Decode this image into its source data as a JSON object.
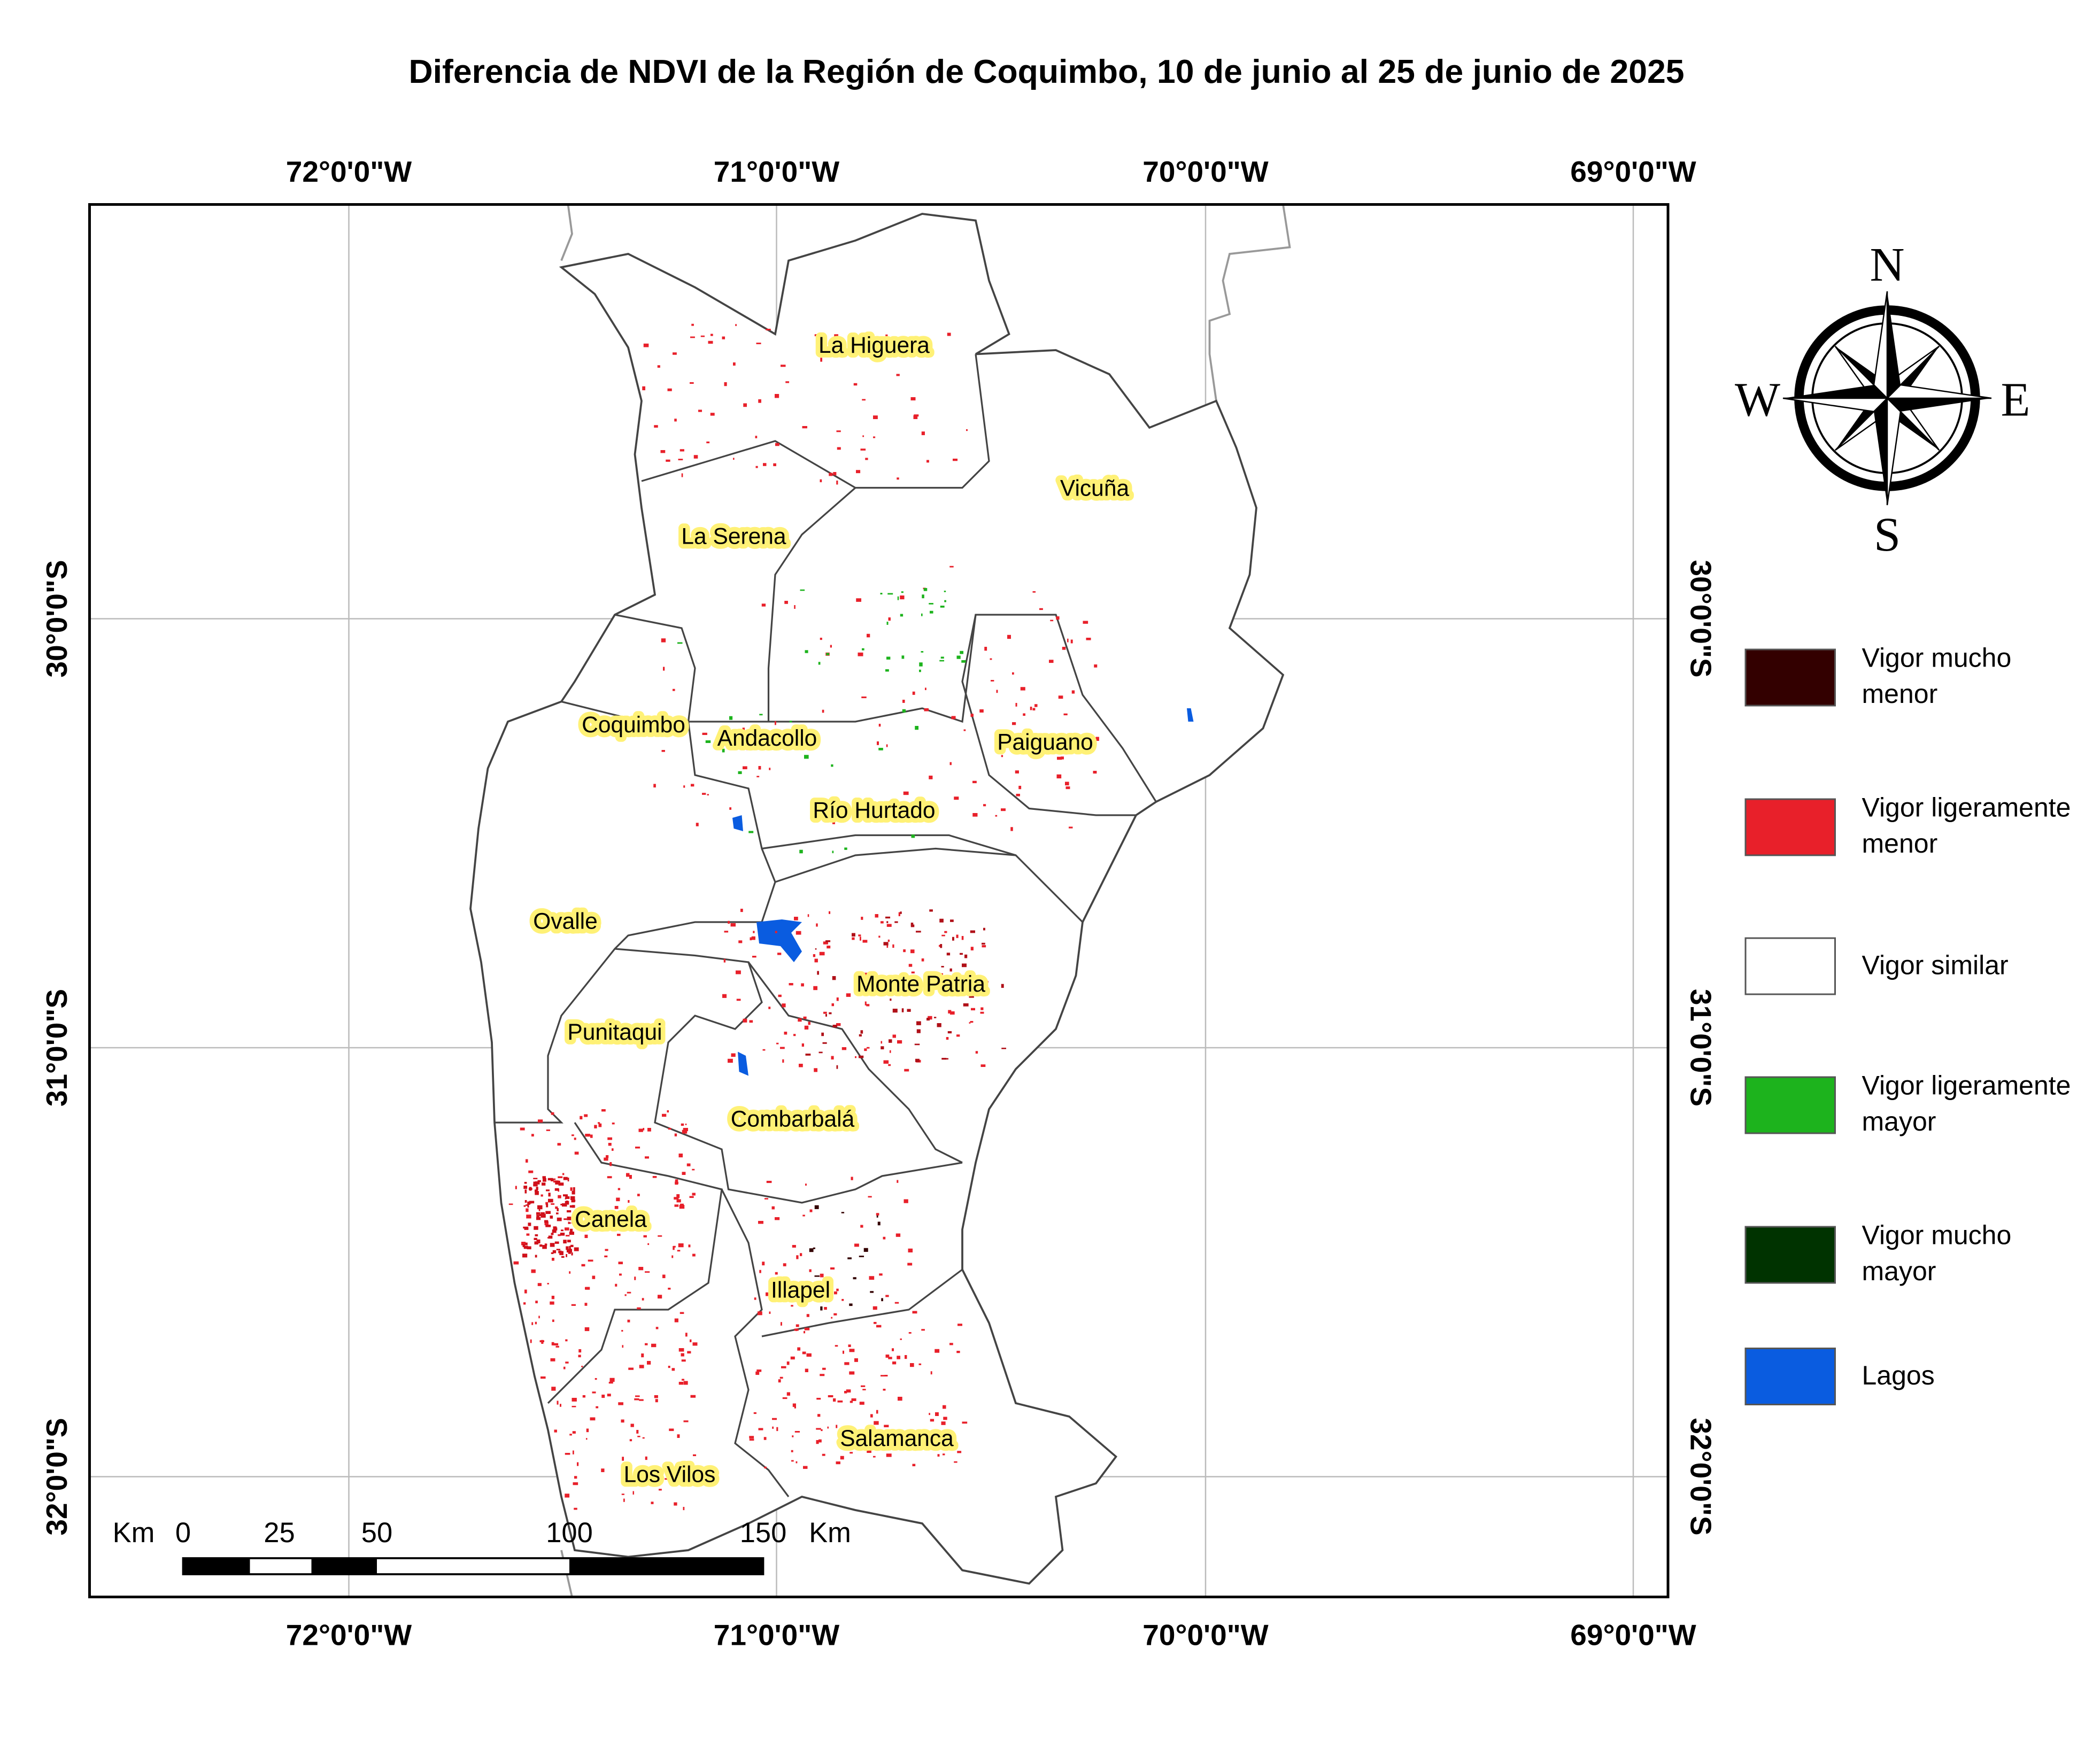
{
  "title": "Diferencia de NDVI de la Región de Coquimbo, 10 de junio al 25 de junio de 2025",
  "graticule": {
    "longitude_labels": [
      "72°0'0\"W",
      "71°0'0\"W",
      "70°0'0\"W",
      "69°0'0\"W"
    ],
    "latitude_labels": [
      "30°0'0\"S",
      "31°0'0\"S",
      "32°0'0\"S"
    ]
  },
  "communes": [
    {
      "label": "La Higuera"
    },
    {
      "label": "Vicuña"
    },
    {
      "label": "La Serena"
    },
    {
      "label": "Coquimbo"
    },
    {
      "label": "Andacollo"
    },
    {
      "label": "Paiguano"
    },
    {
      "label": "Río Hurtado"
    },
    {
      "label": "Ovalle"
    },
    {
      "label": "Monte Patria"
    },
    {
      "label": "Punitaqui"
    },
    {
      "label": "Combarbalá"
    },
    {
      "label": "Canela"
    },
    {
      "label": "Illapel"
    },
    {
      "label": "Salamanca"
    },
    {
      "label": "Los Vilos"
    }
  ],
  "compass": {
    "north": "N",
    "south": "S",
    "east": "E",
    "west": "W"
  },
  "legend": {
    "items": [
      {
        "label": "Vigor mucho menor",
        "color": "#330000"
      },
      {
        "label": "Vigor ligeramente menor",
        "color": "#e8202a"
      },
      {
        "label": "Vigor similar",
        "color": "#ffffff"
      },
      {
        "label": "Vigor ligeramente mayor",
        "color": "#1db31d"
      },
      {
        "label": "Vigor mucho mayor",
        "color": "#003300"
      },
      {
        "label": "Lagos",
        "color": "#0a5ce0"
      }
    ]
  },
  "scale_bar": {
    "unit": "Km",
    "ticks": [
      0,
      25,
      50,
      100,
      150
    ]
  }
}
